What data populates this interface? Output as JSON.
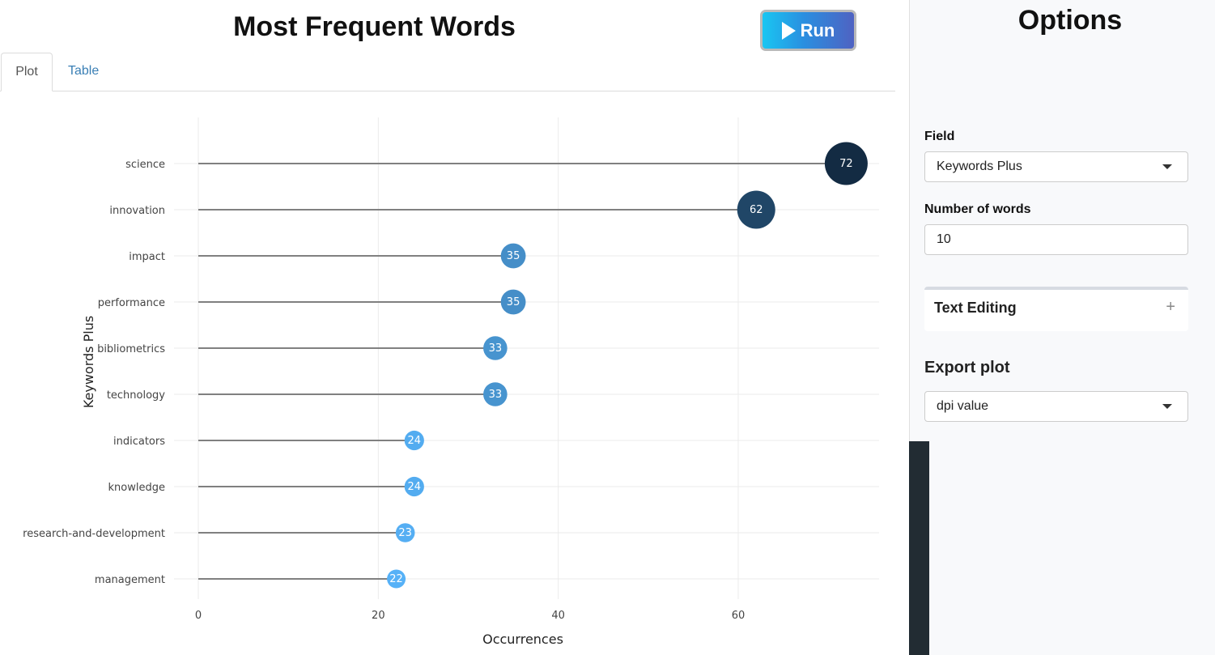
{
  "main": {
    "title": "Most Frequent Words",
    "run_button": {
      "label": "Run",
      "icon": "play-icon"
    },
    "tabs": [
      {
        "label": "Plot",
        "active": true
      },
      {
        "label": "Table",
        "active": false
      }
    ]
  },
  "chart_data": {
    "type": "lollipop",
    "categories": [
      "science",
      "innovation",
      "impact",
      "performance",
      "bibliometrics",
      "technology",
      "indicators",
      "knowledge",
      "research-and-development",
      "management"
    ],
    "values": [
      72,
      62,
      35,
      35,
      33,
      33,
      24,
      24,
      23,
      22
    ],
    "xlabel": "Occurrences",
    "ylabel": "Keywords Plus",
    "xticks": [
      0,
      20,
      40,
      60
    ],
    "xlim": [
      0,
      76
    ],
    "grid": true,
    "color_scale": {
      "low": "#56b1f7",
      "high": "#132b43"
    }
  },
  "sidebar": {
    "title": "Options",
    "field": {
      "label": "Field",
      "value": "Keywords Plus"
    },
    "num_words": {
      "label": "Number of words",
      "value": "10"
    },
    "text_editing": {
      "label": "Text Editing",
      "icon": "plus-icon"
    },
    "export": {
      "title": "Export plot",
      "dpi_value": "dpi value"
    }
  }
}
